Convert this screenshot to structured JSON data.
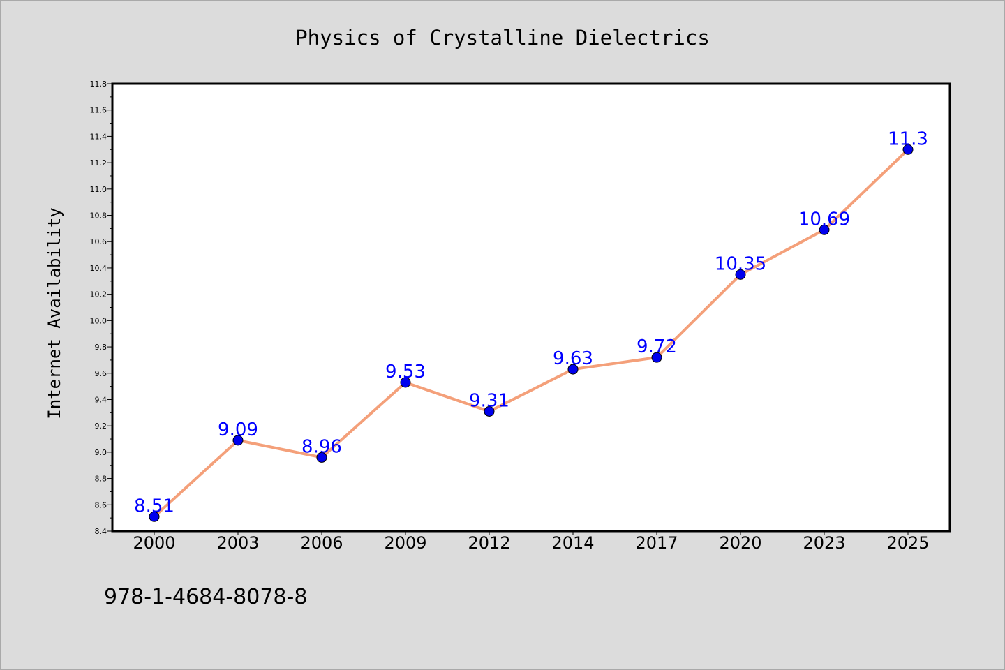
{
  "chart_data": {
    "type": "line",
    "title": "Physics of Crystalline Dielectrics",
    "xlabel": "",
    "ylabel": "Internet Availability",
    "categories": [
      "2000",
      "2003",
      "2006",
      "2009",
      "2012",
      "2014",
      "2017",
      "2020",
      "2023",
      "2025"
    ],
    "series": [
      {
        "values": [
          8.51,
          9.09,
          8.96,
          9.53,
          9.31,
          9.63,
          9.72,
          10.35,
          10.69,
          11.3
        ],
        "labels": [
          "8.51",
          "9.09",
          "8.96",
          "9.53",
          "9.31",
          "9.63",
          "9.72",
          "10.35",
          "10.69",
          "11.3"
        ],
        "line_color": "#f4a07a",
        "marker_color": "#0000ee"
      }
    ],
    "ylim": [
      8.4,
      11.8
    ],
    "yticks": [
      "8.4",
      "8.6",
      "8.8",
      "9.0",
      "9.2",
      "9.4",
      "9.6",
      "9.8",
      "10.0",
      "10.2",
      "10.4",
      "10.6",
      "10.8",
      "11.0",
      "11.2",
      "11.4",
      "11.6",
      "11.8"
    ],
    "grid": false,
    "legend": "none",
    "label_color": "#0000ff"
  },
  "footer": {
    "isbn": "978-1-4684-8078-8"
  }
}
